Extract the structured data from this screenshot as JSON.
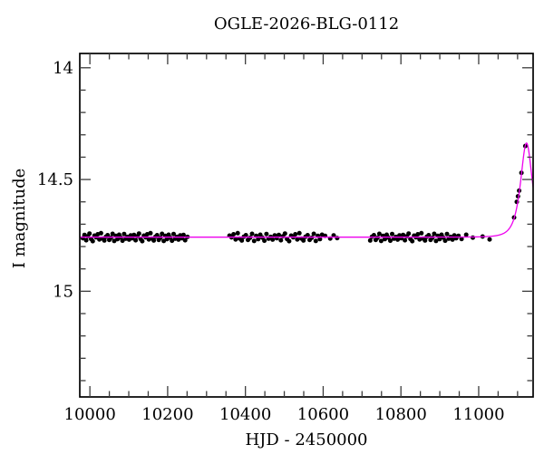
{
  "chart_data": {
    "type": "scatter",
    "title": "OGLE-2026-BLG-0112",
    "xlabel": "HJD - 2450000",
    "ylabel": "I magnitude",
    "xlim": [
      9974,
      11140
    ],
    "ylim": [
      13.936,
      15.473
    ],
    "y_inverted": true,
    "grid": false,
    "x_major_ticks": [
      10000,
      10200,
      10400,
      10600,
      10800,
      11000
    ],
    "x_tick_labels": [
      "10000",
      "10200",
      "10400",
      "10600",
      "10800",
      "11000"
    ],
    "x_minor_step": 50,
    "y_major_ticks": [
      14,
      14.5,
      15
    ],
    "y_tick_labels": [
      "14",
      "14.5",
      "15"
    ],
    "y_minor_step": 0.1,
    "baseline_mag": 14.758,
    "colors": {
      "points": "#000000",
      "model_curve": "#ee00ee",
      "frame": "#000000",
      "ticks": "#3c3c3c"
    },
    "model": {
      "type": "paczynski",
      "t0": 11123,
      "tE": 20,
      "u0": 0.85,
      "baseline": 14.758,
      "peak_mag": 14.337
    },
    "seasons": [
      {
        "name": "season-1",
        "day_start": 9982,
        "day_end": 10245,
        "mags": [
          14.763,
          14.748,
          14.772,
          14.754,
          14.742,
          14.766,
          14.776,
          14.751,
          14.759,
          14.745,
          14.768,
          14.74,
          14.764,
          14.773,
          14.756,
          14.749,
          14.77,
          14.761,
          14.743,
          14.775,
          14.752,
          14.767,
          14.747,
          14.76,
          14.774,
          14.744,
          14.765,
          14.757,
          14.769,
          14.75,
          14.763,
          14.748,
          14.772,
          14.754,
          14.742,
          14.766,
          14.776,
          14.751,
          14.759,
          14.745,
          14.768,
          14.74,
          14.764,
          14.773,
          14.756,
          14.749,
          14.77,
          14.761,
          14.743,
          14.775,
          14.752,
          14.767,
          14.747,
          14.76,
          14.774,
          14.744,
          14.765,
          14.757,
          14.769,
          14.75,
          14.763,
          14.748,
          14.772
        ]
      },
      {
        "name": "season-2",
        "day_start": 10359,
        "day_end": 10597,
        "mags": [
          14.751,
          14.759,
          14.745,
          14.768,
          14.74,
          14.764,
          14.773,
          14.756,
          14.749,
          14.77,
          14.761,
          14.743,
          14.775,
          14.752,
          14.767,
          14.747,
          14.76,
          14.774,
          14.744,
          14.765,
          14.757,
          14.769,
          14.75,
          14.763,
          14.748,
          14.772,
          14.754,
          14.742,
          14.766,
          14.776,
          14.751,
          14.759,
          14.745,
          14.768,
          14.74,
          14.764,
          14.773,
          14.756,
          14.749,
          14.77,
          14.761,
          14.743,
          14.775,
          14.752,
          14.767,
          14.747
        ]
      },
      {
        "name": "season-3",
        "day_start": 10721,
        "day_end": 10942,
        "mags": [
          14.773,
          14.756,
          14.749,
          14.77,
          14.761,
          14.743,
          14.775,
          14.752,
          14.767,
          14.747,
          14.76,
          14.774,
          14.744,
          14.765,
          14.757,
          14.769,
          14.75,
          14.763,
          14.748,
          14.772,
          14.754,
          14.742,
          14.766,
          14.776,
          14.751,
          14.759,
          14.745,
          14.768,
          14.74,
          14.764,
          14.773,
          14.756,
          14.749,
          14.77,
          14.761,
          14.743,
          14.775,
          14.752,
          14.767,
          14.747,
          14.76,
          14.774,
          14.744,
          14.765,
          14.757,
          14.769,
          14.75,
          14.763
        ]
      }
    ],
    "extra_points": [
      [
        10251,
        14.757
      ],
      [
        10605,
        14.752
      ],
      [
        10618,
        14.764
      ],
      [
        10627,
        14.75
      ],
      [
        10636,
        14.762
      ],
      [
        10948,
        14.752
      ],
      [
        10956,
        14.766
      ],
      [
        10968,
        14.747
      ],
      [
        10985,
        14.76
      ],
      [
        11010,
        14.755
      ],
      [
        11028,
        14.768
      ]
    ],
    "rise_points": [
      [
        11091,
        14.67
      ],
      [
        11098,
        14.6
      ],
      [
        11101,
        14.575
      ],
      [
        11104,
        14.55
      ],
      [
        11110,
        14.47
      ],
      [
        11120,
        14.35
      ]
    ]
  }
}
